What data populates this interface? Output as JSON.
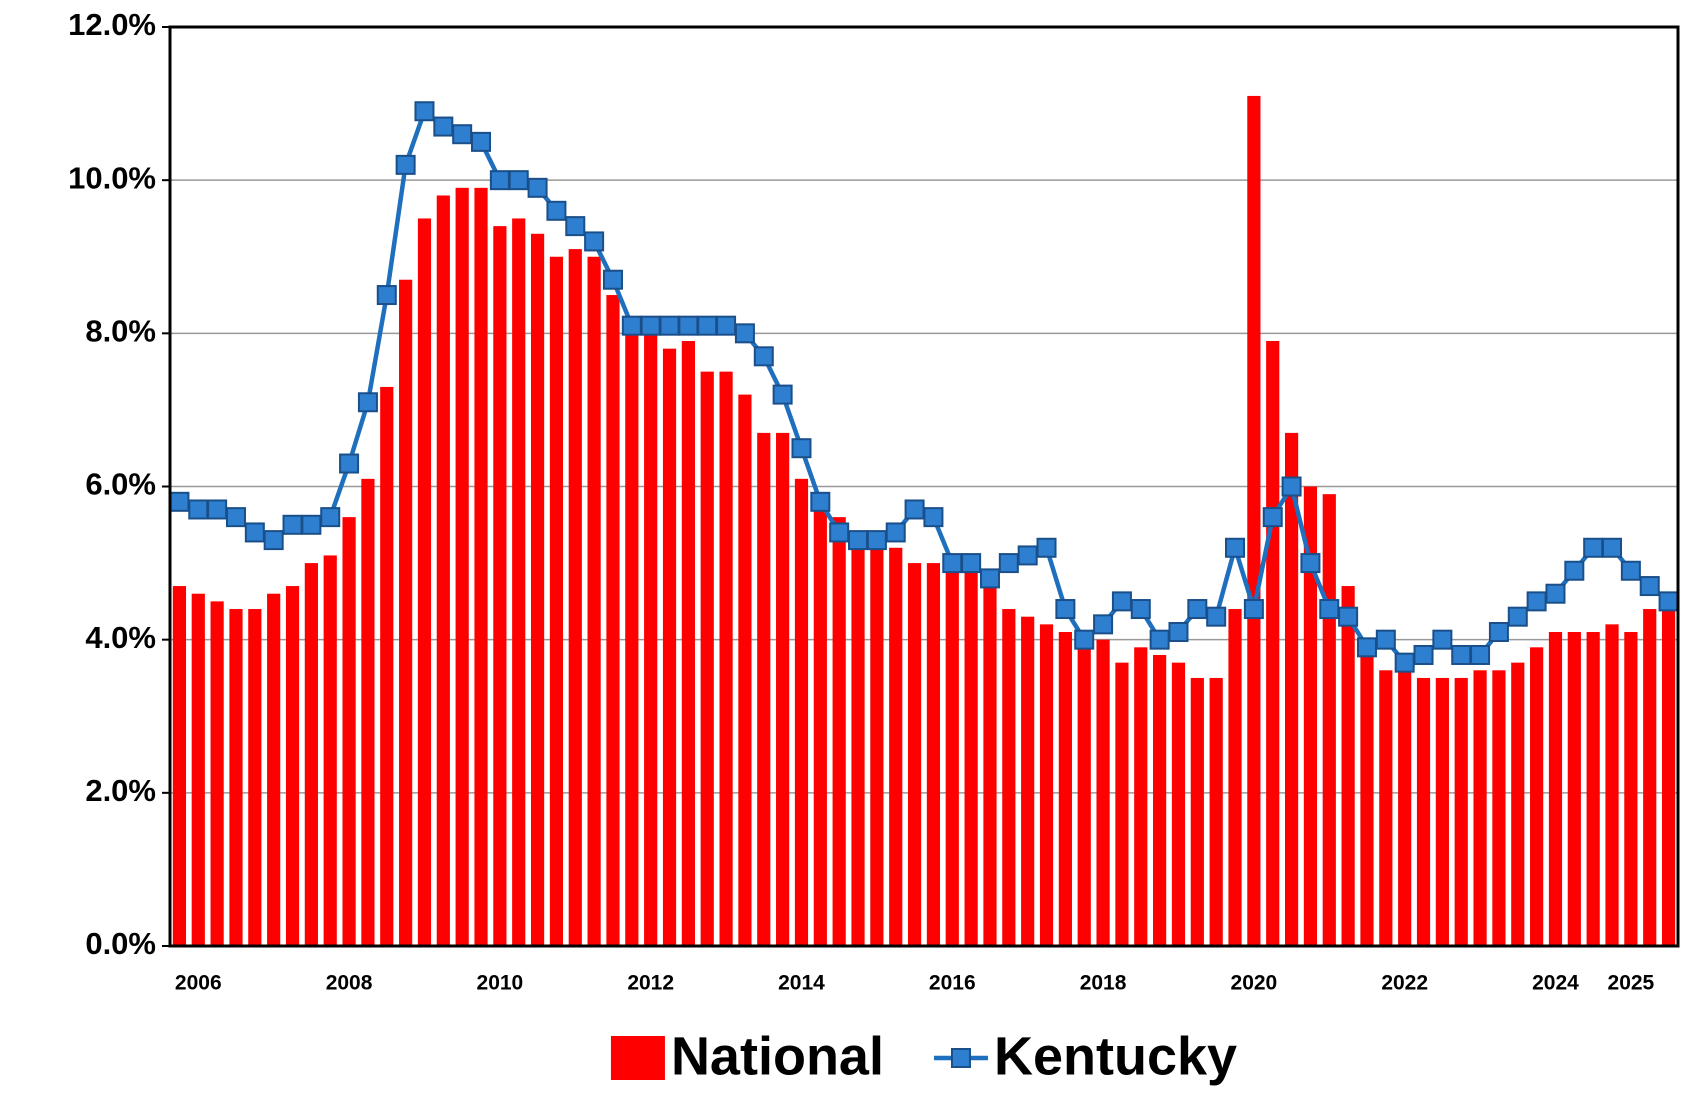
{
  "chart_data": {
    "type": "bar_line",
    "categories": [
      null,
      "2006",
      null,
      null,
      null,
      null,
      null,
      null,
      null,
      "2008",
      null,
      null,
      null,
      null,
      null,
      null,
      null,
      "2010",
      null,
      null,
      null,
      null,
      null,
      null,
      null,
      "2012",
      null,
      null,
      null,
      null,
      null,
      null,
      null,
      "2014",
      null,
      null,
      null,
      null,
      null,
      null,
      null,
      "2016",
      null,
      null,
      null,
      null,
      null,
      null,
      null,
      "2018",
      null,
      null,
      null,
      null,
      null,
      null,
      null,
      "2020",
      null,
      null,
      null,
      null,
      null,
      null,
      null,
      "2022",
      null,
      null,
      null,
      null,
      null,
      null,
      null,
      "2024",
      null,
      null,
      null,
      "2025",
      null,
      null
    ],
    "series": [
      {
        "name": "National",
        "type": "bar",
        "color": "#ff0000",
        "values": [
          4.7,
          4.6,
          4.5,
          4.4,
          4.4,
          4.6,
          4.7,
          5.0,
          5.1,
          5.6,
          6.1,
          7.3,
          8.7,
          9.5,
          9.8,
          9.9,
          9.9,
          9.4,
          9.5,
          9.3,
          9.0,
          9.1,
          9.0,
          8.5,
          8.1,
          8.0,
          7.8,
          7.9,
          7.5,
          7.5,
          7.2,
          6.7,
          6.7,
          6.1,
          5.7,
          5.6,
          5.4,
          5.3,
          5.2,
          5.0,
          5.0,
          5.0,
          4.9,
          4.7,
          4.4,
          4.3,
          4.2,
          4.1,
          3.9,
          4.0,
          3.7,
          3.9,
          3.8,
          3.7,
          3.5,
          3.5,
          4.4,
          11.1,
          7.9,
          6.7,
          6.0,
          5.9,
          4.7,
          3.9,
          3.6,
          3.6,
          3.5,
          3.5,
          3.5,
          3.6,
          3.6,
          3.7,
          3.9,
          4.1,
          4.1,
          4.1,
          4.2,
          4.1,
          4.4,
          4.4
        ]
      },
      {
        "name": "Kentucky",
        "type": "line",
        "color": "#1f6fbf",
        "values": [
          5.8,
          5.7,
          5.7,
          5.6,
          5.4,
          5.3,
          5.5,
          5.5,
          5.6,
          6.3,
          7.1,
          8.5,
          10.2,
          10.9,
          10.7,
          10.6,
          10.5,
          10.0,
          10.0,
          9.9,
          9.6,
          9.4,
          9.2,
          8.7,
          8.1,
          8.1,
          8.1,
          8.1,
          8.1,
          8.1,
          8.0,
          7.7,
          7.2,
          6.5,
          5.8,
          5.4,
          5.3,
          5.3,
          5.4,
          5.7,
          5.6,
          5.0,
          5.0,
          4.8,
          5.0,
          5.1,
          5.2,
          4.4,
          4.0,
          4.2,
          4.5,
          4.4,
          4.0,
          4.1,
          4.4,
          4.3,
          5.2,
          4.4,
          5.6,
          6.0,
          5.0,
          4.4,
          4.3,
          3.9,
          4.0,
          3.7,
          3.8,
          4.0,
          3.8,
          3.8,
          4.1,
          4.3,
          4.5,
          4.6,
          4.9,
          5.2,
          5.2,
          4.9,
          4.7,
          4.5
        ]
      }
    ],
    "ylim": [
      0,
      12
    ],
    "yticks": [
      {
        "value": 0,
        "label": "0.0%"
      },
      {
        "value": 2,
        "label": "2.0%"
      },
      {
        "value": 4,
        "label": "4.0%"
      },
      {
        "value": 6,
        "label": "6.0%"
      },
      {
        "value": 8,
        "label": "8.0%"
      },
      {
        "value": 10,
        "label": "10.0%"
      },
      {
        "value": 12,
        "label": "12.0%"
      }
    ],
    "grid": true,
    "legend": "bottom"
  }
}
